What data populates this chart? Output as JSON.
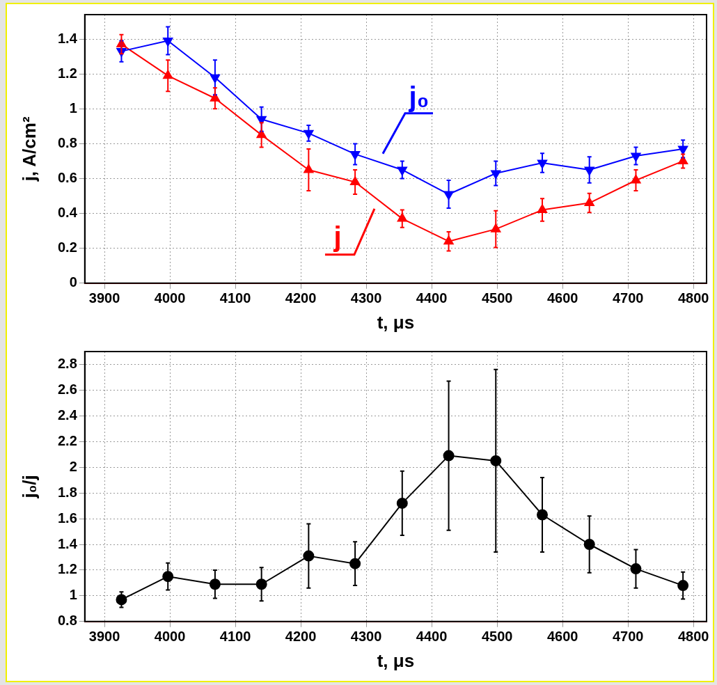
{
  "chart_data": [
    {
      "type": "line",
      "xlabel": "t, μs",
      "ylabel": "j, A/cm²",
      "xlim": [
        3870,
        4820
      ],
      "xticks": [
        3900,
        4000,
        4100,
        4200,
        4300,
        4400,
        4500,
        4600,
        4700,
        4800
      ],
      "ylim": [
        0,
        1.54
      ],
      "yticks": [
        0,
        0.2,
        0.4,
        0.6,
        0.8,
        1,
        1.2,
        1.4
      ],
      "grid": true,
      "x": [
        3926,
        3997,
        4069,
        4140,
        4212,
        4283,
        4355,
        4426,
        4498,
        4569,
        4641,
        4712,
        4784
      ],
      "series": [
        {
          "name": "j₀",
          "color": "#0000ff",
          "marker": "triangle",
          "values": [
            1.33,
            1.39,
            1.18,
            0.94,
            0.86,
            0.74,
            0.65,
            0.51,
            0.63,
            0.69,
            0.65,
            0.73,
            0.77
          ],
          "errors": [
            0.06,
            0.08,
            0.1,
            0.07,
            0.045,
            0.06,
            0.05,
            0.08,
            0.07,
            0.055,
            0.075,
            0.05,
            0.05
          ]
        },
        {
          "name": "j",
          "color": "#ff0000",
          "marker": "triangle",
          "values": [
            1.37,
            1.19,
            1.06,
            0.85,
            0.65,
            0.58,
            0.37,
            0.24,
            0.31,
            0.42,
            0.46,
            0.59,
            0.7
          ],
          "errors": [
            0.055,
            0.09,
            0.06,
            0.07,
            0.12,
            0.07,
            0.05,
            0.055,
            0.105,
            0.065,
            0.055,
            0.06,
            0.04
          ]
        }
      ]
    },
    {
      "type": "line",
      "xlabel": "t, μs",
      "ylabel": "j₀/j",
      "xlim": [
        3870,
        4820
      ],
      "xticks": [
        3900,
        4000,
        4100,
        4200,
        4300,
        4400,
        4500,
        4600,
        4700,
        4800
      ],
      "ylim": [
        0.8,
        2.9
      ],
      "yticks": [
        0.8,
        1,
        1.2,
        1.4,
        1.6,
        1.8,
        2,
        2.2,
        2.4,
        2.6,
        2.8
      ],
      "grid": true,
      "marker": "circle",
      "color": "#000000",
      "x": [
        3926,
        3997,
        4069,
        4140,
        4212,
        4283,
        4355,
        4426,
        4498,
        4569,
        4641,
        4712,
        4784
      ],
      "values": [
        0.97,
        1.15,
        1.09,
        1.09,
        1.31,
        1.25,
        1.72,
        2.09,
        2.05,
        1.63,
        1.4,
        1.21,
        1.08
      ],
      "errors": [
        0.06,
        0.105,
        0.11,
        0.13,
        0.25,
        0.17,
        0.25,
        0.58,
        0.71,
        0.29,
        0.22,
        0.15,
        0.105
      ]
    }
  ]
}
